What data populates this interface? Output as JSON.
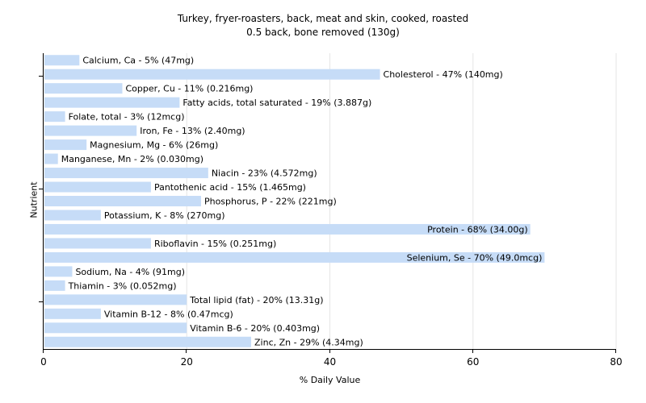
{
  "chart_data": {
    "type": "bar",
    "orientation": "horizontal",
    "title": "Turkey, fryer-roasters, back, meat and skin, cooked, roasted",
    "subtitle": "0.5 back, bone removed (130g)",
    "xlabel": "% Daily Value",
    "ylabel": "Nutrient",
    "xlim": [
      0,
      80
    ],
    "xticks": [
      0,
      20,
      40,
      60,
      80
    ],
    "grid": true,
    "bar_color": "#c6dcf7",
    "categories": [
      "Calcium, Ca",
      "Cholesterol",
      "Copper, Cu",
      "Fatty acids, total saturated",
      "Folate, total",
      "Iron, Fe",
      "Magnesium, Mg",
      "Manganese, Mn",
      "Niacin",
      "Pantothenic acid",
      "Phosphorus, P",
      "Potassium, K",
      "Protein",
      "Riboflavin",
      "Selenium, Se",
      "Sodium, Na",
      "Thiamin",
      "Total lipid (fat)",
      "Vitamin B-12",
      "Vitamin B-6",
      "Zinc, Zn"
    ],
    "values": [
      5,
      47,
      11,
      19,
      3,
      13,
      6,
      2,
      23,
      15,
      22,
      8,
      68,
      15,
      70,
      4,
      3,
      20,
      8,
      20,
      29
    ],
    "labels": [
      "Calcium, Ca - 5% (47mg)",
      "Cholesterol - 47% (140mg)",
      "Copper, Cu - 11% (0.216mg)",
      "Fatty acids, total saturated - 19% (3.887g)",
      "Folate, total - 3% (12mcg)",
      "Iron, Fe - 13% (2.40mg)",
      "Magnesium, Mg - 6% (26mg)",
      "Manganese, Mn - 2% (0.030mg)",
      "Niacin - 23% (4.572mg)",
      "Pantothenic acid - 15% (1.465mg)",
      "Phosphorus, P - 22% (221mg)",
      "Potassium, K - 8% (270mg)",
      "Protein - 68% (34.00g)",
      "Riboflavin - 15% (0.251mg)",
      "Selenium, Se - 70% (49.0mcg)",
      "Sodium, Na - 4% (91mg)",
      "Thiamin - 3% (0.052mg)",
      "Total lipid (fat) - 20% (13.31g)",
      "Vitamin B-12 - 8% (0.47mcg)",
      "Vitamin B-6 - 20% (0.403mg)",
      "Zinc, Zn - 29% (4.34mg)"
    ]
  }
}
